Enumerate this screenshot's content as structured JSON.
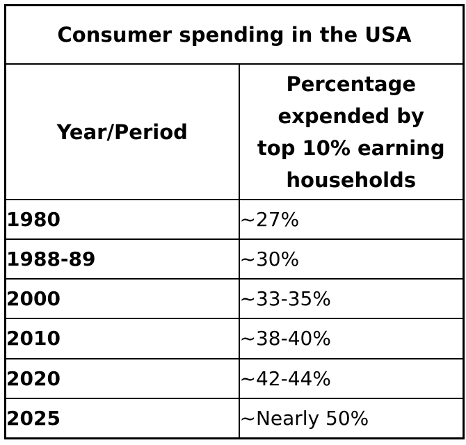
{
  "chart_data": {
    "type": "table",
    "title": "Consumer spending in the USA",
    "columns": [
      "Year/Period",
      "Percentage expended by top 10% earning households"
    ],
    "header_lines": [
      "Percentage",
      "expended by",
      "top 10% earning",
      "households"
    ],
    "rows": [
      {
        "period": "1980",
        "value": "~27%"
      },
      {
        "period": "1988-89",
        "value": "~30%"
      },
      {
        "period": "2000",
        "value": "~33-35%"
      },
      {
        "period": "2010",
        "value": "~38-40%"
      },
      {
        "period": "2020",
        "value": "~42-44%"
      },
      {
        "period": "2025",
        "value": "~Nearly 50%"
      }
    ]
  }
}
